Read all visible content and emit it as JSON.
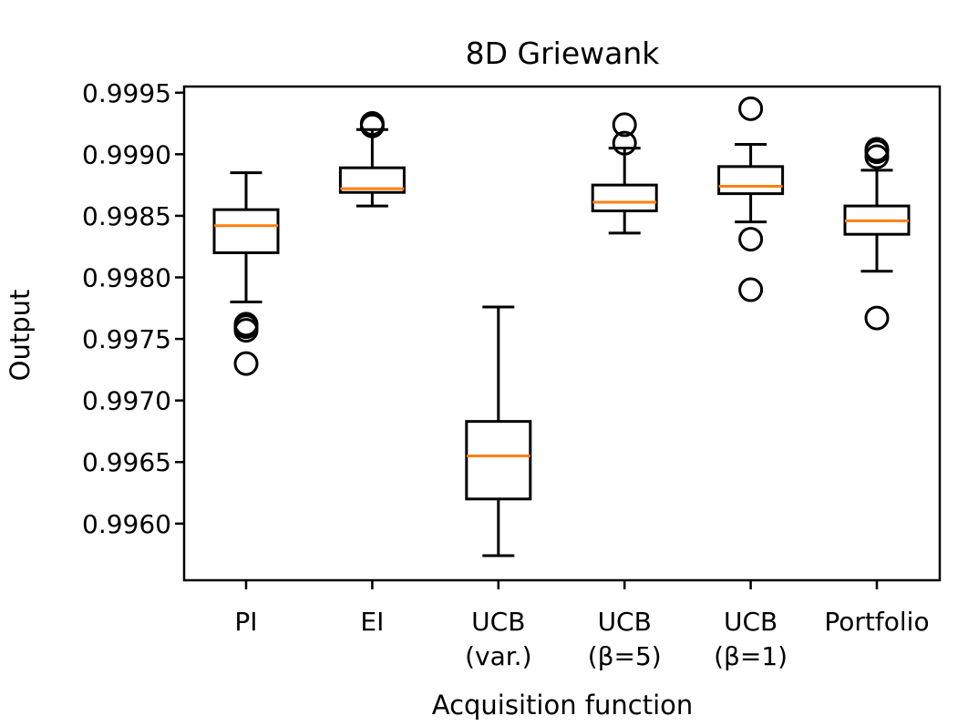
{
  "chart_data": {
    "type": "boxplot",
    "title": "8D Griewank",
    "xlabel": "Acquisition function",
    "ylabel": "Output",
    "ylim": [
      0.99554,
      0.99955
    ],
    "yticks": [
      "0.9960",
      "0.9965",
      "0.9970",
      "0.9975",
      "0.9980",
      "0.9985",
      "0.9990",
      "0.9995"
    ],
    "ytick_values": [
      0.996,
      0.9965,
      0.997,
      0.9975,
      0.998,
      0.9985,
      0.999,
      0.9995
    ],
    "grid": false,
    "colors": {
      "box": "#000000",
      "median": "#ff7f0e",
      "background": "#ffffff"
    },
    "categories": [
      {
        "label_lines": [
          "PI"
        ],
        "whisker_low": 0.9978,
        "q1": 0.9982,
        "median": 0.99842,
        "q3": 0.99855,
        "whisker_high": 0.99885,
        "outliers": [
          0.99762,
          0.9976,
          0.99757,
          0.9973
        ]
      },
      {
        "label_lines": [
          "EI"
        ],
        "whisker_low": 0.99858,
        "q1": 0.99869,
        "median": 0.99872,
        "q3": 0.99889,
        "whisker_high": 0.9992,
        "outliers": [
          0.99925,
          0.99923
        ]
      },
      {
        "label_lines": [
          "UCB",
          "(var.)"
        ],
        "whisker_low": 0.99574,
        "q1": 0.9962,
        "median": 0.99655,
        "q3": 0.99683,
        "whisker_high": 0.99776,
        "outliers": []
      },
      {
        "label_lines": [
          "UCB",
          "(β=5)"
        ],
        "whisker_low": 0.99836,
        "q1": 0.99854,
        "median": 0.99861,
        "q3": 0.99875,
        "whisker_high": 0.99905,
        "outliers": [
          0.99924,
          0.99909
        ]
      },
      {
        "label_lines": [
          "UCB",
          "(β=1)"
        ],
        "whisker_low": 0.99845,
        "q1": 0.99868,
        "median": 0.99874,
        "q3": 0.9989,
        "whisker_high": 0.99908,
        "outliers": [
          0.99937,
          0.99831,
          0.9979
        ]
      },
      {
        "label_lines": [
          "Portfolio"
        ],
        "whisker_low": 0.99805,
        "q1": 0.99835,
        "median": 0.99846,
        "q3": 0.99858,
        "whisker_high": 0.99887,
        "outliers": [
          0.99904,
          0.99902,
          0.99898,
          0.99767
        ]
      }
    ]
  }
}
